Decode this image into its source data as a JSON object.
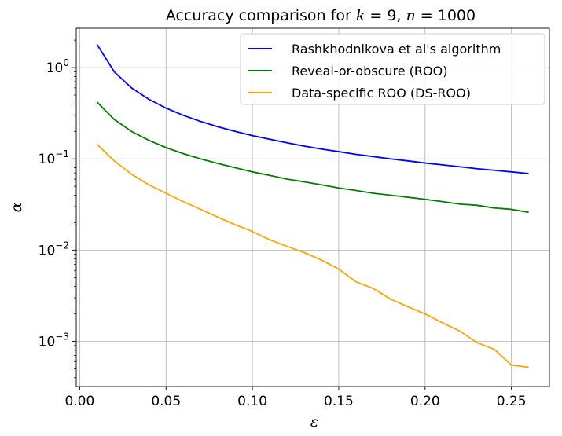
{
  "chart_data": {
    "type": "line",
    "title": "Accuracy comparison for k = 9, n = 1000",
    "title_parts": [
      "Accuracy comparison for ",
      "k",
      " = 9, ",
      "n",
      " = 1000"
    ],
    "xlabel": "ε",
    "ylabel": "α",
    "yscale": "log",
    "xlim": [
      -0.002,
      0.272
    ],
    "ylim": [
      0.00032,
      2.7
    ],
    "x_ticks": [
      0.0,
      0.05,
      0.1,
      0.15,
      0.2,
      0.25
    ],
    "x_tick_labels": [
      "0.00",
      "0.05",
      "0.10",
      "0.15",
      "0.20",
      "0.25"
    ],
    "y_ticks": [
      1,
      0.1,
      0.01,
      0.001
    ],
    "y_tick_labels": [
      {
        "base": "10",
        "exp": "0"
      },
      {
        "base": "10",
        "exp": "−1"
      },
      {
        "base": "10",
        "exp": "−2"
      },
      {
        "base": "10",
        "exp": "−3"
      }
    ],
    "grid": true,
    "legend_position": "top-right",
    "x": [
      0.01,
      0.02,
      0.03,
      0.04,
      0.05,
      0.06,
      0.07,
      0.08,
      0.09,
      0.1,
      0.11,
      0.12,
      0.13,
      0.14,
      0.15,
      0.16,
      0.17,
      0.18,
      0.19,
      0.2,
      0.21,
      0.22,
      0.23,
      0.24,
      0.25,
      0.26
    ],
    "series": [
      {
        "name": "Rashkhodnikova et al's algorithm",
        "color": "#0000ff",
        "values": [
          1.8,
          0.9,
          0.6,
          0.45,
          0.36,
          0.3,
          0.257,
          0.225,
          0.2,
          0.18,
          0.164,
          0.15,
          0.138,
          0.128,
          0.12,
          0.112,
          0.106,
          0.1,
          0.095,
          0.09,
          0.086,
          0.082,
          0.078,
          0.075,
          0.072,
          0.069
        ]
      },
      {
        "name": "Reveal-or-obscure (ROO)",
        "color": "#008000",
        "values": [
          0.42,
          0.27,
          0.2,
          0.16,
          0.133,
          0.114,
          0.1,
          0.089,
          0.08,
          0.072,
          0.066,
          0.06,
          0.056,
          0.052,
          0.048,
          0.045,
          0.042,
          0.04,
          0.038,
          0.036,
          0.034,
          0.032,
          0.031,
          0.029,
          0.028,
          0.026
        ]
      },
      {
        "name": "Data-specific ROO (DS-ROO)",
        "color": "#ffa500",
        "values": [
          0.145,
          0.095,
          0.068,
          0.052,
          0.042,
          0.034,
          0.028,
          0.023,
          0.019,
          0.016,
          0.013,
          0.011,
          0.0094,
          0.0078,
          0.0062,
          0.0045,
          0.0038,
          0.0029,
          0.0024,
          0.002,
          0.0016,
          0.0013,
          0.00097,
          0.00082,
          0.00055,
          0.00052
        ]
      }
    ]
  }
}
